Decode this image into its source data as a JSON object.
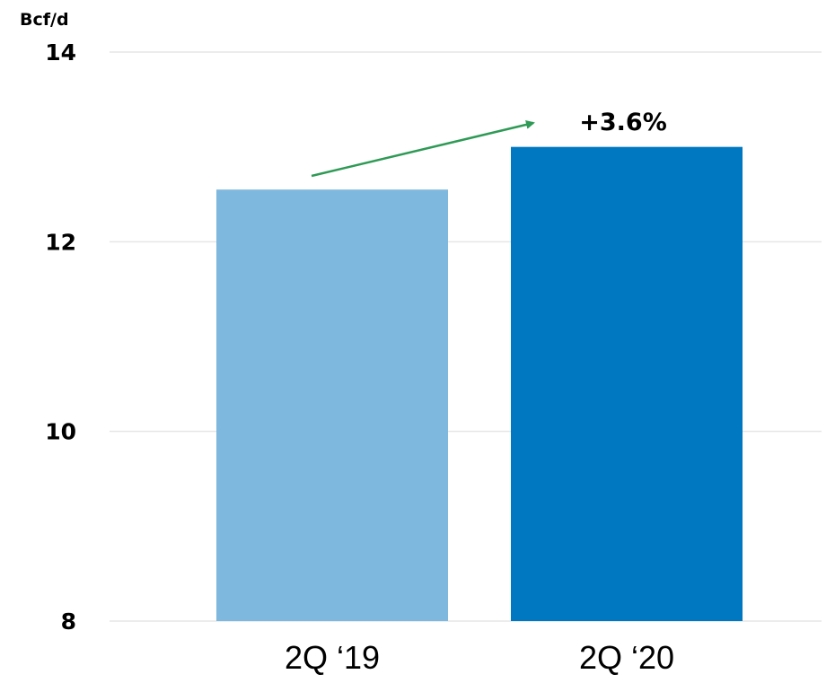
{
  "chart_data": {
    "type": "bar",
    "unit_label": "Bcf/d",
    "categories": [
      "2Q ‘19",
      "2Q ‘20"
    ],
    "values": [
      12.55,
      13.0
    ],
    "bar_colors": [
      "#7fb8de",
      "#0078c1"
    ],
    "ylim": [
      8,
      14
    ],
    "yticks": [
      "8",
      "10",
      "12",
      "14"
    ],
    "grid": true,
    "annotation": {
      "text": "+3.6%",
      "arrow_color": "#2e9a55"
    },
    "xlabel": "",
    "ylabel": ""
  }
}
